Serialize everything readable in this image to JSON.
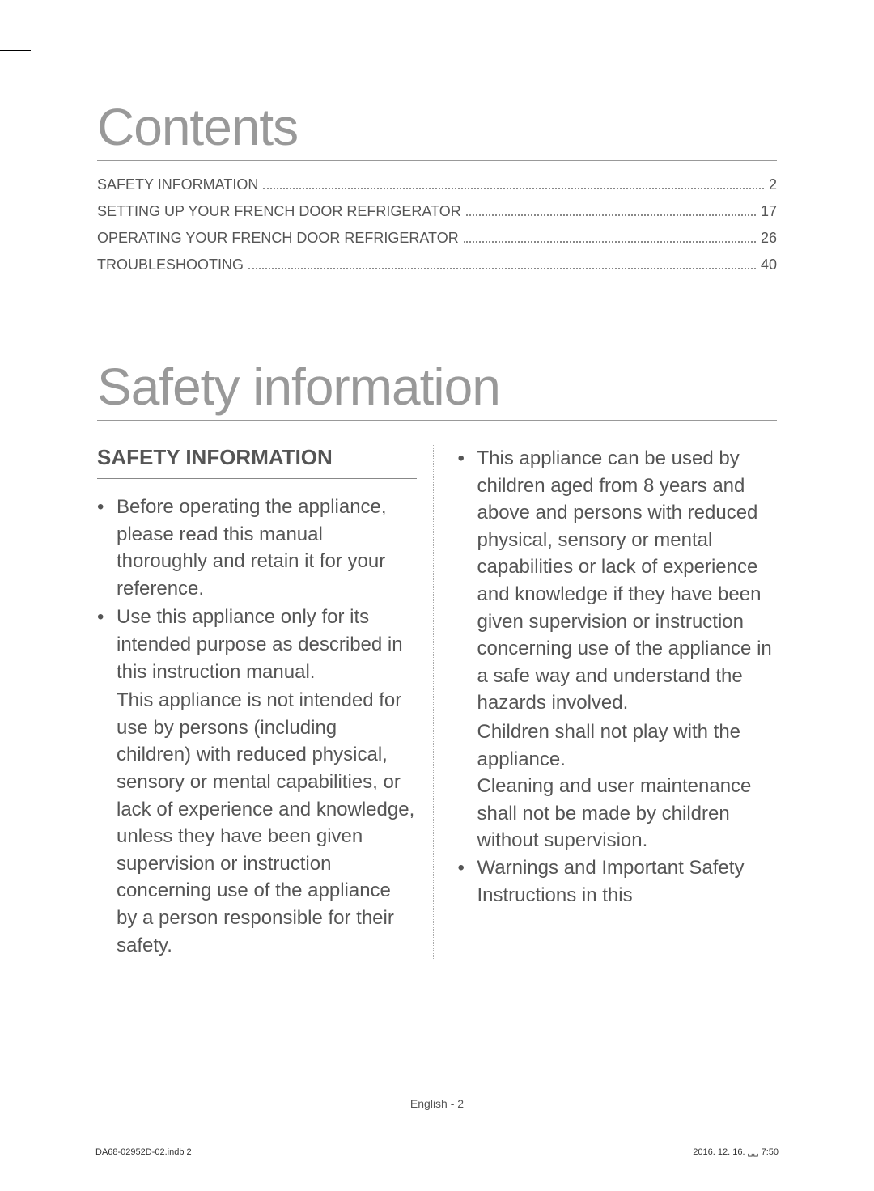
{
  "headings": {
    "contents": "Contents",
    "safety_information": "Safety information",
    "safety_info_sub": "SAFETY INFORMATION"
  },
  "toc": [
    {
      "title": "SAFETY INFORMATION",
      "page": "2",
      "spacer": " "
    },
    {
      "title": "SETTING UP YOUR FRENCH DOOR REFRIGERATOR  ",
      "page": "17",
      "spacer": ""
    },
    {
      "title": "OPERATING YOUR FRENCH DOOR REFRIGERATOR",
      "page": "26",
      "spacer": ""
    },
    {
      "title": "TROUBLESHOOTING",
      "page": "40",
      "spacer": ""
    }
  ],
  "left_column": {
    "bullets": [
      "Before operating the appliance, please read this manual thoroughly and retain it for your reference.",
      "Use this appliance only for its intended purpose as described in this instruction manual."
    ],
    "continuation": "This appliance is not intended for use by persons (including children) with reduced physical, sensory or mental capabilities, or lack of experience and knowledge, unless they have been given supervision or instruction concerning use of the appliance by a person responsible for their safety."
  },
  "right_column": {
    "bullets": [
      "This appliance can be used by children aged from 8 years and above and persons with reduced physical, sensory or mental capabilities or lack of experience and knowledge if they have been given supervision or instruction concerning use of the appliance in a safe way and understand the hazards involved."
    ],
    "continuation1": "Children shall not play with the appliance.",
    "continuation2": "Cleaning and user maintenance shall not be made by children without supervision.",
    "bullets2": [
      "Warnings and Important Safety Instructions in this"
    ]
  },
  "footer": {
    "center": "English - 2",
    "left": "DA68-02952D-02.indb   2",
    "right": "2016. 12. 16.   ␣␣ 7:50"
  },
  "bullet_char": "•"
}
